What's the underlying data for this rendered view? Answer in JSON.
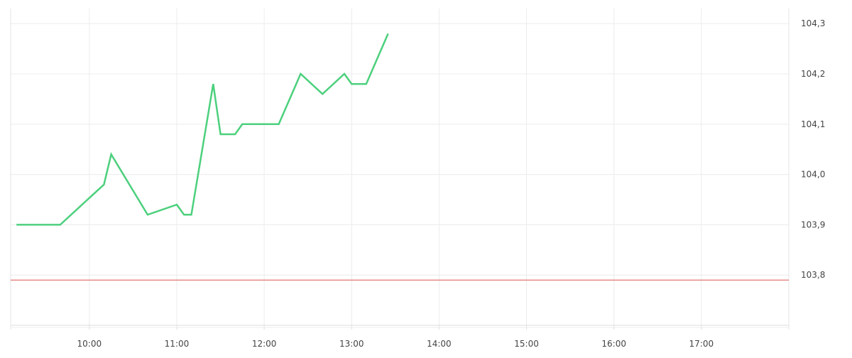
{
  "chart_data": {
    "type": "line",
    "title": "",
    "xlabel": "",
    "ylabel": "",
    "x_ticks": [
      "10:00",
      "11:00",
      "12:00",
      "13:00",
      "14:00",
      "15:00",
      "16:00",
      "17:00"
    ],
    "y_ticks": [
      "103,8",
      "103,9",
      "104,0",
      "104,1",
      "104,2",
      "104,3"
    ],
    "xlim": [
      "09:06",
      "18:00"
    ],
    "ylim": [
      103.7,
      104.33
    ],
    "grid": true,
    "series": [
      {
        "color": "#4cd07d",
        "x": [
          "09:10",
          "09:40",
          "10:10",
          "10:15",
          "10:40",
          "11:00",
          "11:05",
          "11:10",
          "11:25",
          "11:30",
          "11:40",
          "11:45",
          "12:10",
          "12:25",
          "12:40",
          "12:55",
          "13:00",
          "13:10",
          "13:25"
        ],
        "y": [
          103.9,
          103.9,
          103.98,
          104.04,
          103.92,
          103.94,
          103.92,
          103.92,
          104.18,
          104.08,
          104.08,
          104.1,
          104.1,
          104.2,
          104.16,
          104.2,
          104.18,
          104.18,
          104.28
        ]
      }
    ],
    "reference_line": {
      "y": 103.79,
      "color": "#d9534f"
    }
  }
}
